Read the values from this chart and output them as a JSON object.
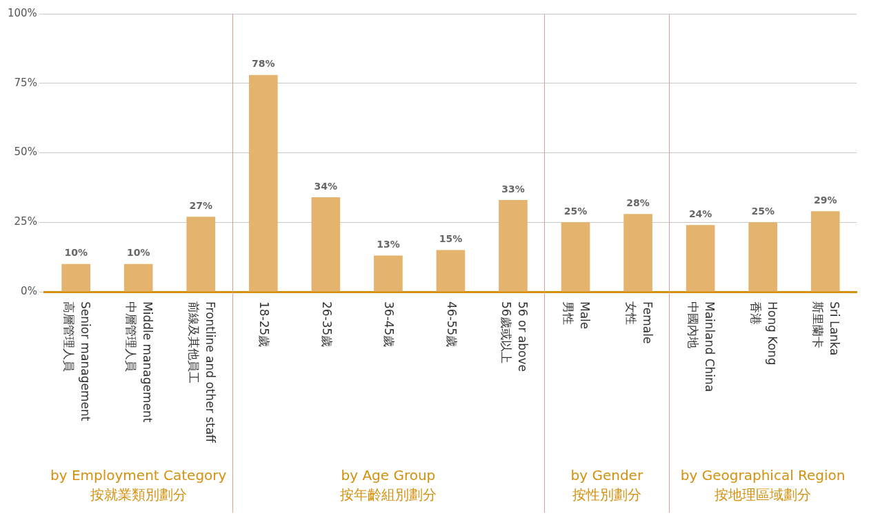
{
  "chart_data": {
    "type": "bar",
    "categories": [
      "Senior management\n高層管理人員",
      "Middle management\n中層管理人員",
      "Frontline and other staff\n前線及其他員工",
      "18-25歲",
      "26-35歲",
      "36-45歲",
      "46-55歲",
      "56 or above\n56歲或以上",
      "Male\n男性",
      "Female\n女性",
      "Mainland China\n中國內地",
      "Hong Kong\n香港",
      "Sri Lanka\n斯里蘭卡"
    ],
    "values": [
      10,
      10,
      27,
      78,
      34,
      13,
      15,
      33,
      25,
      28,
      24,
      25,
      29
    ],
    "value_labels": [
      "10%",
      "10%",
      "27%",
      "78%",
      "34%",
      "13%",
      "15%",
      "33%",
      "25%",
      "28%",
      "24%",
      "25%",
      "29%"
    ],
    "color": "#e4b46e",
    "ylim": [
      0,
      100
    ],
    "yticks": [
      {
        "value": 0,
        "label": "0%"
      },
      {
        "value": 25,
        "label": "25%"
      },
      {
        "value": 50,
        "label": "50%"
      },
      {
        "value": 75,
        "label": "75%"
      },
      {
        "value": 100,
        "label": "100%"
      }
    ],
    "grid": "y",
    "annotations": [
      "by Employment Category\n按就業類別劃分",
      "by Age Group\n按年齡組別劃分",
      "by Gender\n按性別劃分",
      "by Geographical Region\n按地理區域劃分"
    ]
  }
}
